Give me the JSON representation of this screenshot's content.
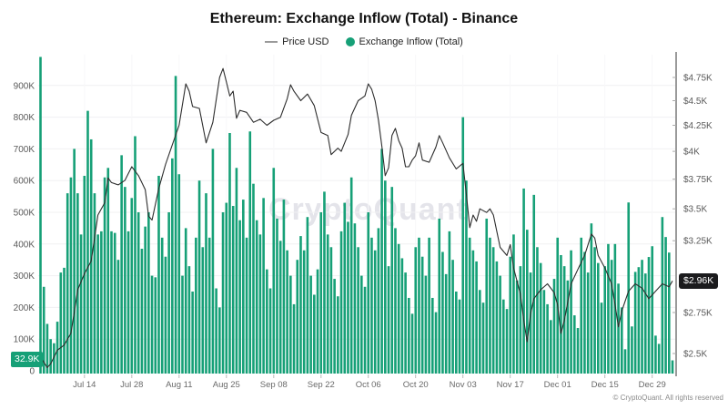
{
  "title": "Ethereum: Exchange Inflow (Total) - Binance",
  "legend": {
    "items": [
      {
        "label": "Price USD",
        "swatch": "line-dash",
        "color": "#9a9a9a"
      },
      {
        "label": "Exchange Inflow (Total)",
        "swatch": "dot",
        "color": "#16a077"
      }
    ]
  },
  "watermark": "CryptoQuant",
  "copyright": "© CryptoQuant. All rights reserved",
  "badges": {
    "inflow_last": "32.9K",
    "price_last": "$2.96K"
  },
  "colors": {
    "bar_green": "#16a077",
    "price_line": "#2d2d2d",
    "axis_text": "#5a5a5a",
    "gridline": "#f0f0f2",
    "right_axis_line": "#8f8f8f",
    "badge_dark": "#1b1b1d"
  },
  "chart_data": {
    "type": "bar",
    "title": "Ethereum: Exchange Inflow (Total) - Binance",
    "x_start_date": "Jul 01",
    "x_ticks": [
      {
        "label": "Jul 14",
        "day": 13
      },
      {
        "label": "Jul 28",
        "day": 27
      },
      {
        "label": "Aug 11",
        "day": 41
      },
      {
        "label": "Aug 25",
        "day": 55
      },
      {
        "label": "Sep 08",
        "day": 69
      },
      {
        "label": "Sep 22",
        "day": 83
      },
      {
        "label": "Oct 06",
        "day": 97
      },
      {
        "label": "Oct 20",
        "day": 111
      },
      {
        "label": "Nov 03",
        "day": 125
      },
      {
        "label": "Nov 17",
        "day": 139
      },
      {
        "label": "Dec 01",
        "day": 153
      },
      {
        "label": "Dec 15",
        "day": 167
      },
      {
        "label": "Dec 29",
        "day": 181
      }
    ],
    "y_left": {
      "unit": "ETH",
      "range_k": [
        0,
        1000
      ],
      "grid": true,
      "ticks": [
        {
          "v": 0,
          "label": "0"
        },
        {
          "v": 100,
          "label": "100K"
        },
        {
          "v": 200,
          "label": "200K"
        },
        {
          "v": 300,
          "label": "300K"
        },
        {
          "v": 400,
          "label": "400K"
        },
        {
          "v": 500,
          "label": "500K"
        },
        {
          "v": 600,
          "label": "600K"
        },
        {
          "v": 700,
          "label": "700K"
        },
        {
          "v": 800,
          "label": "800K"
        },
        {
          "v": 900,
          "label": "900K"
        }
      ]
    },
    "y_right": {
      "unit": "USD (thousands)",
      "scale": "log",
      "ticks": [
        {
          "v": 2.5,
          "label": "$2.5K"
        },
        {
          "v": 2.75,
          "label": "$2.75K"
        },
        {
          "v": 3.25,
          "label": "$3.25K"
        },
        {
          "v": 3.5,
          "label": "$3.5K"
        },
        {
          "v": 3.75,
          "label": "$3.75K"
        },
        {
          "v": 4,
          "label": "$4K"
        },
        {
          "v": 4.25,
          "label": "$4.25K"
        },
        {
          "v": 4.5,
          "label": "$4.5K"
        },
        {
          "v": 4.75,
          "label": "$4.75K"
        }
      ],
      "current_price_label": "$2.96K"
    },
    "series": [
      {
        "name": "Exchange Inflow (Total)",
        "type": "bar",
        "axis": "left",
        "color": "#16a077",
        "unit": "K",
        "last_value_k": 32.9,
        "values": [
          990,
          265,
          148,
          100,
          87,
          155,
          310,
          325,
          560,
          610,
          700,
          560,
          430,
          615,
          820,
          730,
          560,
          430,
          440,
          610,
          640,
          440,
          435,
          350,
          680,
          580,
          440,
          545,
          740,
          500,
          385,
          455,
          500,
          300,
          295,
          615,
          420,
          360,
          500,
          670,
          930,
          620,
          300,
          450,
          330,
          250,
          420,
          600,
          390,
          560,
          420,
          700,
          260,
          200,
          500,
          530,
          750,
          520,
          640,
          475,
          540,
          420,
          755,
          590,
          475,
          430,
          545,
          320,
          260,
          640,
          480,
          410,
          540,
          380,
          300,
          210,
          350,
          425,
          380,
          485,
          300,
          240,
          320,
          500,
          565,
          430,
          390,
          290,
          235,
          440,
          530,
          470,
          610,
          465,
          390,
          300,
          265,
          500,
          420,
          380,
          450,
          700,
          600,
          330,
          580,
          450,
          400,
          355,
          310,
          230,
          180,
          390,
          420,
          360,
          300,
          420,
          230,
          185,
          480,
          375,
          305,
          440,
          350,
          250,
          225,
          800,
          600,
          420,
          380,
          345,
          255,
          215,
          480,
          420,
          390,
          345,
          300,
          225,
          195,
          360,
          430,
          285,
          330,
          575,
          445,
          310,
          555,
          390,
          340,
          255,
          210,
          160,
          290,
          420,
          365,
          330,
          285,
          380,
          175,
          135,
          420,
          375,
          310,
          465,
          390,
          340,
          215,
          330,
          400,
          350,
          400,
          275,
          200,
          68,
          531,
          140,
          312,
          327,
          350,
          307,
          359,
          393,
          111,
          85,
          485,
          422,
          373,
          33
        ]
      },
      {
        "name": "Price USD",
        "type": "line",
        "axis": "right",
        "color": "#2d2d2d",
        "unit": "USD (thousands)",
        "points": [
          [
            0,
            2.48
          ],
          [
            2,
            2.42
          ],
          [
            3,
            2.44
          ],
          [
            5,
            2.52
          ],
          [
            7,
            2.55
          ],
          [
            9,
            2.62
          ],
          [
            10,
            2.75
          ],
          [
            11,
            2.9
          ],
          [
            13,
            3.01
          ],
          [
            15,
            3.1
          ],
          [
            17,
            3.45
          ],
          [
            19,
            3.55
          ],
          [
            20,
            3.76
          ],
          [
            21,
            3.72
          ],
          [
            23,
            3.7
          ],
          [
            25,
            3.74
          ],
          [
            27,
            3.86
          ],
          [
            29,
            3.78
          ],
          [
            31,
            3.66
          ],
          [
            32,
            3.44
          ],
          [
            33,
            3.41
          ],
          [
            35,
            3.67
          ],
          [
            37,
            3.88
          ],
          [
            39,
            4.06
          ],
          [
            41,
            4.25
          ],
          [
            43,
            4.68
          ],
          [
            44,
            4.6
          ],
          [
            45,
            4.44
          ],
          [
            47,
            4.42
          ],
          [
            49,
            4.08
          ],
          [
            51,
            4.28
          ],
          [
            53,
            4.75
          ],
          [
            54,
            4.85
          ],
          [
            55,
            4.7
          ],
          [
            56,
            4.55
          ],
          [
            57,
            4.6
          ],
          [
            58,
            4.32
          ],
          [
            59,
            4.4
          ],
          [
            61,
            4.38
          ],
          [
            63,
            4.28
          ],
          [
            65,
            4.31
          ],
          [
            67,
            4.25
          ],
          [
            69,
            4.3
          ],
          [
            71,
            4.33
          ],
          [
            73,
            4.52
          ],
          [
            74,
            4.67
          ],
          [
            75,
            4.6
          ],
          [
            77,
            4.5
          ],
          [
            79,
            4.57
          ],
          [
            81,
            4.45
          ],
          [
            83,
            4.18
          ],
          [
            85,
            4.15
          ],
          [
            86,
            3.97
          ],
          [
            88,
            4.03
          ],
          [
            89,
            4.0
          ],
          [
            91,
            4.16
          ],
          [
            92,
            4.35
          ],
          [
            94,
            4.5
          ],
          [
            96,
            4.55
          ],
          [
            97,
            4.68
          ],
          [
            98,
            4.62
          ],
          [
            99,
            4.5
          ],
          [
            100,
            4.3
          ],
          [
            101,
            4.05
          ],
          [
            102,
            3.78
          ],
          [
            103,
            3.85
          ],
          [
            104,
            4.15
          ],
          [
            105,
            4.22
          ],
          [
            106,
            4.1
          ],
          [
            107,
            4.03
          ],
          [
            108,
            3.86
          ],
          [
            109,
            3.86
          ],
          [
            110,
            3.92
          ],
          [
            111,
            3.96
          ],
          [
            112,
            4.08
          ],
          [
            113,
            3.92
          ],
          [
            115,
            3.9
          ],
          [
            117,
            4.04
          ],
          [
            118,
            4.15
          ],
          [
            119,
            4.08
          ],
          [
            121,
            3.94
          ],
          [
            123,
            3.84
          ],
          [
            125,
            3.89
          ],
          [
            126,
            3.62
          ],
          [
            127,
            3.35
          ],
          [
            128,
            3.45
          ],
          [
            129,
            3.4
          ],
          [
            130,
            3.5
          ],
          [
            132,
            3.47
          ],
          [
            133,
            3.5
          ],
          [
            134,
            3.45
          ],
          [
            136,
            3.2
          ],
          [
            138,
            3.14
          ],
          [
            139,
            3.22
          ],
          [
            140,
            3.05
          ],
          [
            142,
            2.87
          ],
          [
            143,
            2.7
          ],
          [
            144,
            2.57
          ],
          [
            145,
            2.74
          ],
          [
            146,
            2.84
          ],
          [
            148,
            2.9
          ],
          [
            150,
            2.94
          ],
          [
            152,
            2.88
          ],
          [
            153,
            2.8
          ],
          [
            154,
            2.62
          ],
          [
            155,
            2.7
          ],
          [
            157,
            2.94
          ],
          [
            159,
            3.04
          ],
          [
            161,
            3.14
          ],
          [
            163,
            3.3
          ],
          [
            164,
            3.27
          ],
          [
            165,
            3.14
          ],
          [
            167,
            3.05
          ],
          [
            169,
            2.94
          ],
          [
            170,
            2.8
          ],
          [
            171,
            2.66
          ],
          [
            172,
            2.76
          ],
          [
            174,
            2.89
          ],
          [
            176,
            2.94
          ],
          [
            178,
            2.91
          ],
          [
            180,
            2.84
          ],
          [
            182,
            2.89
          ],
          [
            184,
            2.94
          ],
          [
            186,
            2.92
          ],
          [
            187,
            2.96
          ]
        ]
      }
    ]
  }
}
